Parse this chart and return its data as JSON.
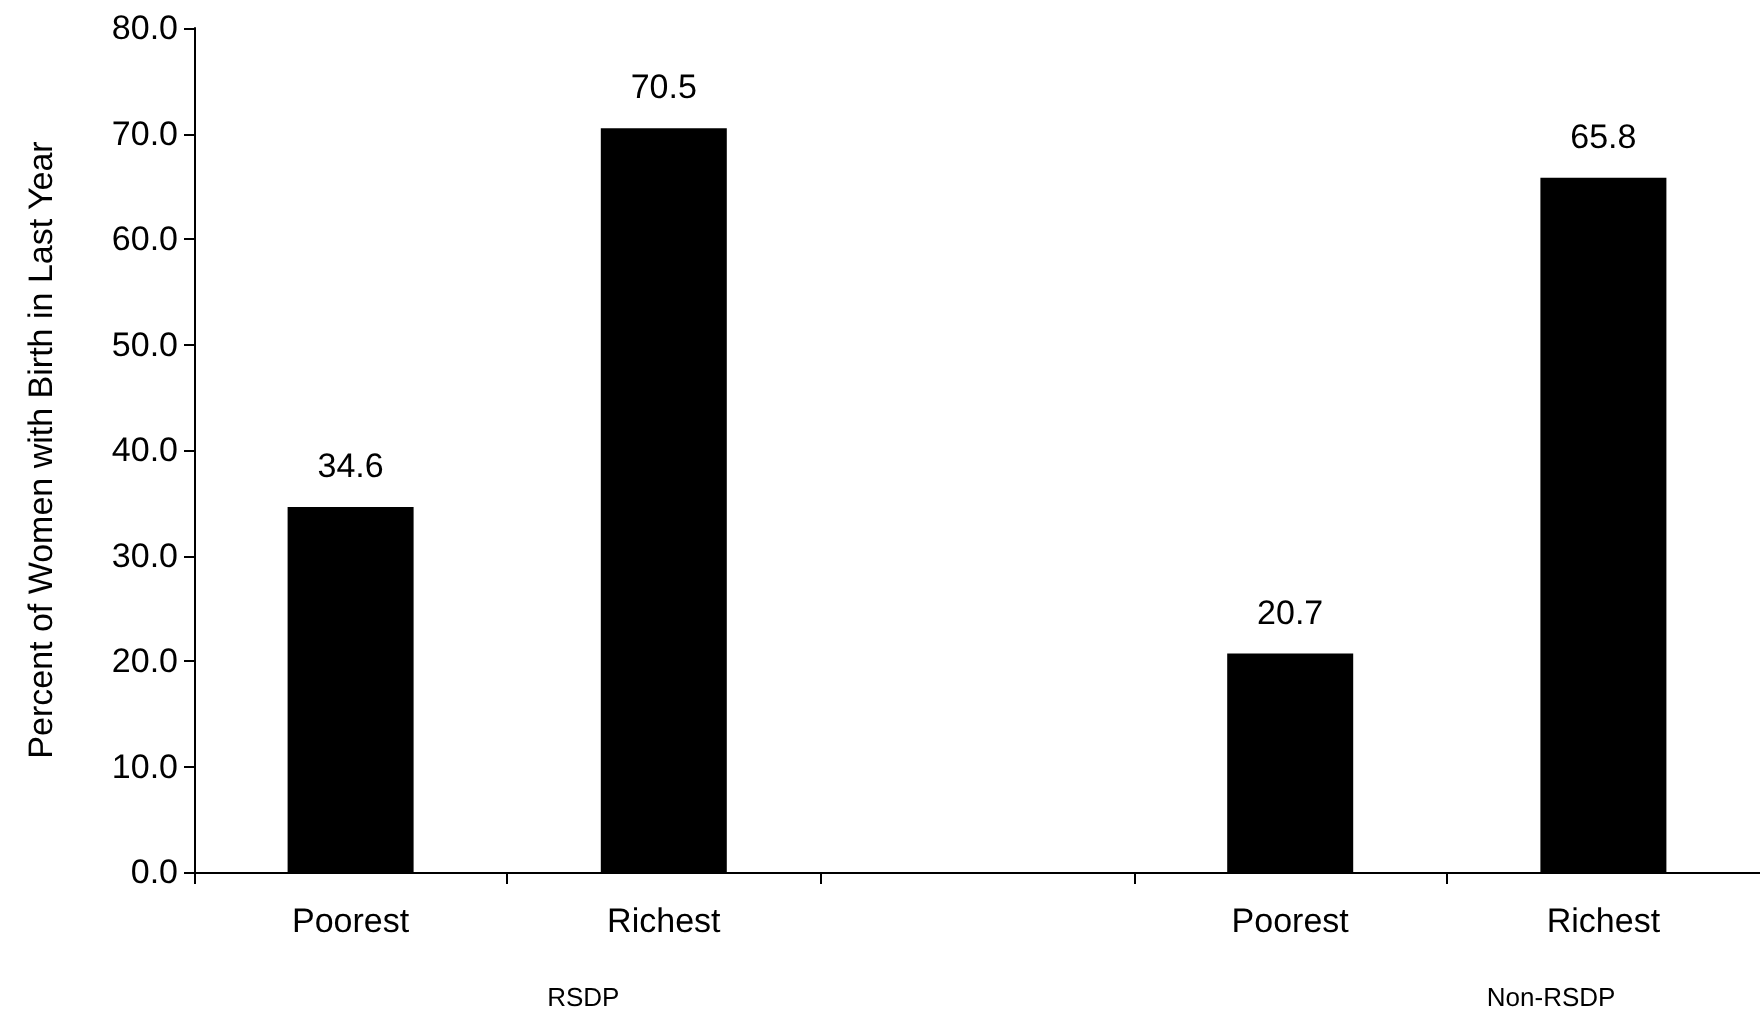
{
  "chart_data": {
    "type": "bar",
    "ylabel": "Percent of Women with Birth in Last Year",
    "categories": [
      "Poorest",
      "Richest",
      null,
      "Poorest",
      "Richest"
    ],
    "values": [
      34.6,
      70.5,
      null,
      20.7,
      65.8
    ],
    "color": "#000000",
    "ylim": [
      0,
      80
    ],
    "yticks": [
      {
        "value": 0,
        "label": "0.0"
      },
      {
        "value": 10,
        "label": "10.0"
      },
      {
        "value": 20,
        "label": "20.0"
      },
      {
        "value": 30,
        "label": "30.0"
      },
      {
        "value": 40,
        "label": "40.0"
      },
      {
        "value": 50,
        "label": "50.0"
      },
      {
        "value": 60,
        "label": "60.0"
      },
      {
        "value": 70,
        "label": "70.0"
      },
      {
        "value": 80,
        "label": "80.0"
      }
    ],
    "annotations": [
      "RSDP",
      "Non-RSDP"
    ],
    "data_labels": true
  }
}
